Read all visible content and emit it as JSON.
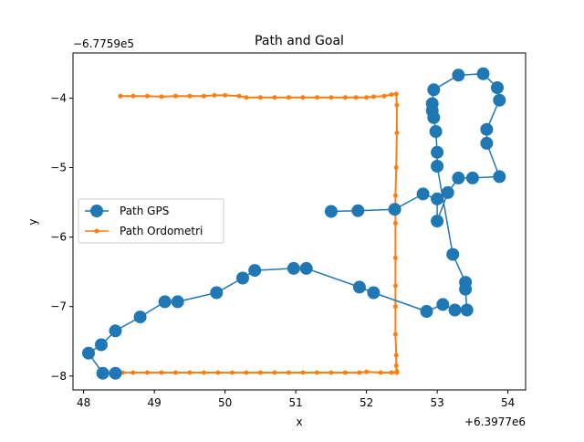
{
  "chart_data": {
    "type": "line",
    "title": "Path and Goal",
    "xlabel": "x",
    "ylabel": "y",
    "x_offset_label": "+6.3977e6",
    "y_offset_label": "−6.7759e5",
    "xlim": [
      47.85,
      54.25
    ],
    "ylim": [
      -8.2,
      -3.35
    ],
    "xticks": [
      48,
      49,
      50,
      51,
      52,
      53,
      54
    ],
    "yticks": [
      -8,
      -7,
      -6,
      -5,
      -4
    ],
    "xtick_labels": [
      "48",
      "49",
      "50",
      "51",
      "52",
      "53",
      "54"
    ],
    "ytick_labels": [
      "−8",
      "−7",
      "−6",
      "−5",
      "−4"
    ],
    "legend": {
      "placement": "center-left"
    },
    "series": [
      {
        "name": "Path GPS",
        "color": "#1f77b4",
        "marker": "large-circle",
        "x": [
          51.5,
          51.88,
          52.4,
          52.8,
          53.0,
          53.0,
          53.15,
          53.3,
          53.5,
          53.88,
          53.7,
          53.7,
          53.88,
          53.85,
          53.65,
          53.3,
          52.95,
          52.93,
          52.93,
          52.95,
          52.98,
          53.0,
          53.0,
          53.22,
          53.4,
          53.4,
          53.42,
          53.25,
          53.08,
          52.85,
          52.1,
          51.9,
          51.15,
          50.97,
          50.42,
          50.25,
          49.88,
          49.33,
          49.15,
          48.8,
          48.45,
          48.25,
          48.07,
          48.27,
          48.45
        ],
        "y": [
          -5.63,
          -5.62,
          -5.6,
          -5.38,
          -5.45,
          -5.77,
          -5.36,
          -5.15,
          -5.15,
          -5.13,
          -4.65,
          -4.45,
          -4.03,
          -3.85,
          -3.65,
          -3.67,
          -3.88,
          -4.08,
          -4.18,
          -4.28,
          -4.48,
          -4.78,
          -4.98,
          -6.25,
          -6.65,
          -6.75,
          -7.05,
          -7.05,
          -6.97,
          -7.07,
          -6.8,
          -6.72,
          -6.45,
          -6.45,
          -6.48,
          -6.59,
          -6.8,
          -6.93,
          -6.93,
          -7.15,
          -7.35,
          -7.55,
          -7.67,
          -7.96,
          -7.96
        ]
      },
      {
        "name": "Path Ordometri",
        "color": "#ff7f0e",
        "marker": "small-dot",
        "x": [
          48.52,
          48.7,
          48.9,
          49.1,
          49.3,
          49.5,
          49.7,
          49.85,
          50.0,
          50.2,
          50.3,
          50.5,
          50.7,
          50.9,
          51.1,
          51.3,
          51.5,
          51.7,
          51.85,
          52.0,
          52.1,
          52.25,
          52.35,
          52.42,
          52.43,
          52.43,
          52.42,
          52.41,
          52.41,
          52.41,
          52.41,
          52.41,
          52.41,
          52.42,
          52.42,
          52.43,
          52.43,
          52.35,
          52.2,
          52.0,
          51.9,
          51.7,
          51.5,
          51.3,
          51.1,
          50.9,
          50.7,
          50.5,
          50.3,
          50.1,
          49.9,
          49.7,
          49.5,
          49.3,
          49.1,
          48.9,
          48.7,
          48.55
        ],
        "y": [
          -3.97,
          -3.97,
          -3.97,
          -3.98,
          -3.97,
          -3.97,
          -3.97,
          -3.96,
          -3.96,
          -3.97,
          -3.99,
          -3.99,
          -3.99,
          -3.99,
          -3.99,
          -3.99,
          -3.99,
          -3.99,
          -3.99,
          -3.99,
          -3.98,
          -3.97,
          -3.95,
          -3.94,
          -4.1,
          -4.5,
          -5.0,
          -5.4,
          -5.8,
          -6.3,
          -6.7,
          -7.0,
          -7.4,
          -7.7,
          -7.85,
          -7.93,
          -7.95,
          -7.95,
          -7.95,
          -7.94,
          -7.95,
          -7.95,
          -7.95,
          -7.95,
          -7.95,
          -7.95,
          -7.95,
          -7.95,
          -7.95,
          -7.95,
          -7.95,
          -7.95,
          -7.95,
          -7.95,
          -7.95,
          -7.95,
          -7.95,
          -7.95
        ]
      }
    ]
  }
}
